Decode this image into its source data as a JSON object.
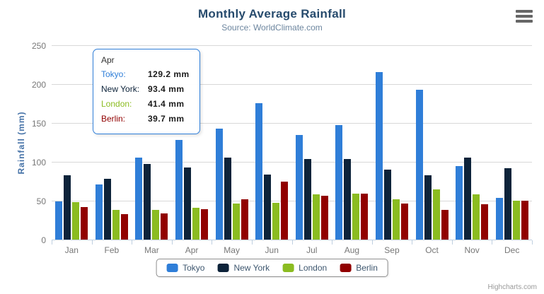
{
  "header": {
    "title": "Monthly Average Rainfall",
    "subtitle": "Source: WorldClimate.com"
  },
  "credit": "Highcharts.com",
  "icons": {
    "context_menu": "hamburger-menu"
  },
  "colors": {
    "title": "#274b6d",
    "subtitle": "#6d869f",
    "y_axis_title": "#4572a7",
    "grid": "#d8d8d8",
    "axis_line": "#c0d0e0",
    "tooltip_border": "#2f7ed8",
    "legend_border": "#909090"
  },
  "chart_data": {
    "type": "bar",
    "title": "Monthly Average Rainfall",
    "subtitle": "Source: WorldClimate.com",
    "xlabel": "",
    "ylabel": "Rainfall (mm)",
    "ylim": [
      0,
      250
    ],
    "yticks": [
      0,
      50,
      100,
      150,
      200,
      250
    ],
    "grid": true,
    "legend_position": "bottom",
    "categories": [
      "Jan",
      "Feb",
      "Mar",
      "Apr",
      "May",
      "Jun",
      "Jul",
      "Aug",
      "Sep",
      "Oct",
      "Nov",
      "Dec"
    ],
    "series": [
      {
        "name": "Tokyo",
        "color": "#2f7ed8",
        "values": [
          49.9,
          71.5,
          106.4,
          129.2,
          144.0,
          176.0,
          135.6,
          148.5,
          216.4,
          194.1,
          95.6,
          54.4
        ]
      },
      {
        "name": "New York",
        "color": "#0d233a",
        "values": [
          83.6,
          78.8,
          98.5,
          93.4,
          106.0,
          84.5,
          105.0,
          104.3,
          91.2,
          83.5,
          106.6,
          92.3
        ]
      },
      {
        "name": "London",
        "color": "#8bbc21",
        "values": [
          48.9,
          38.8,
          39.3,
          41.4,
          47.0,
          48.3,
          59.0,
          59.6,
          52.4,
          65.2,
          59.3,
          51.2
        ]
      },
      {
        "name": "Berlin",
        "color": "#910000",
        "values": [
          42.4,
          33.2,
          34.5,
          39.7,
          52.6,
          75.5,
          57.4,
          60.4,
          47.6,
          39.1,
          46.8,
          51.1
        ]
      }
    ]
  },
  "tooltip": {
    "header": "Apr",
    "rows": [
      {
        "label": "Tokyo:",
        "value": "129.2 mm"
      },
      {
        "label": "New York:",
        "value": "93.4 mm"
      },
      {
        "label": "London:",
        "value": "41.4 mm"
      },
      {
        "label": "Berlin:",
        "value": "39.7 mm"
      }
    ]
  }
}
